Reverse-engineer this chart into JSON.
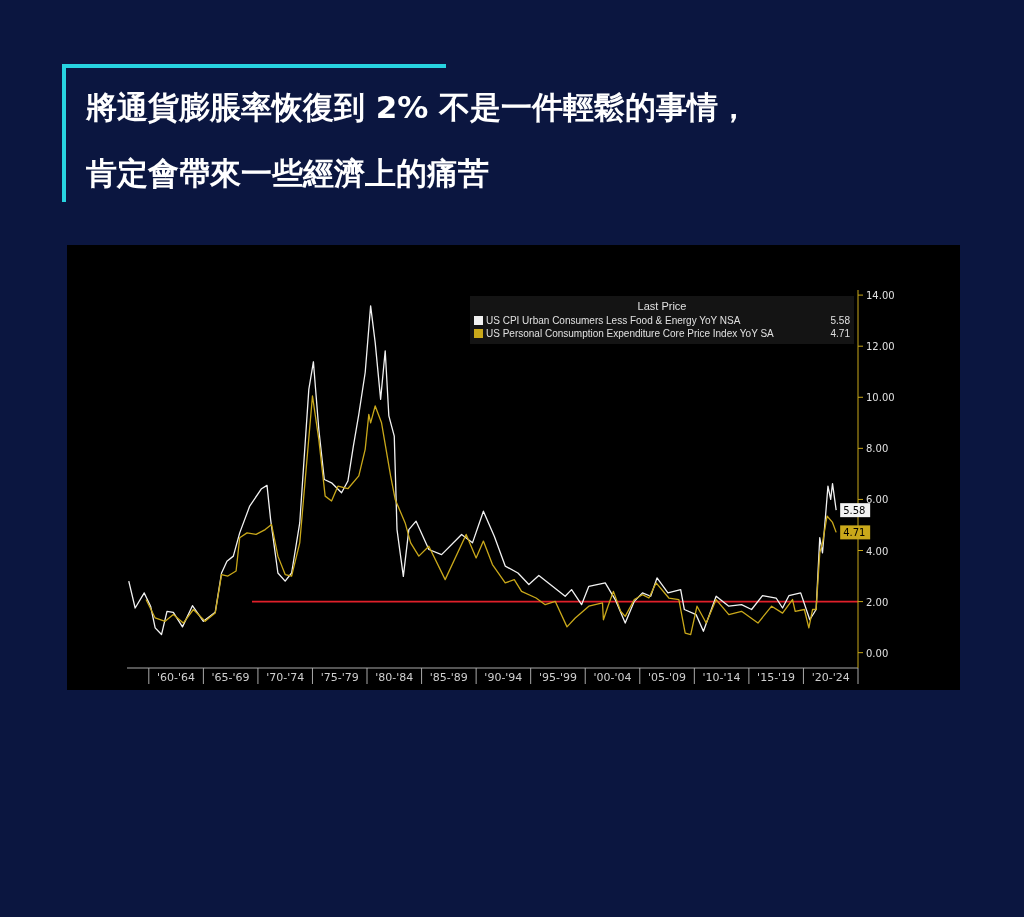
{
  "chart_data": {
    "type": "line",
    "title": "將通貨膨脹率恢復到 2% 不是一件輕鬆的事情，肯定會帶來一些經濟上的痛苦",
    "legend_title": "Last Price",
    "legend": "top right",
    "grid": false,
    "xlim": [
      "1958-01",
      "2025-01"
    ],
    "xticks": [
      {
        "value": "1960-01",
        "label": null
      },
      {
        "value": "1962-07",
        "label": "'60-'64"
      },
      {
        "value": "1965-01",
        "label": null
      },
      {
        "value": "1967-07",
        "label": "'65-'69"
      },
      {
        "value": "1970-01",
        "label": null
      },
      {
        "value": "1972-07",
        "label": "'70-'74"
      },
      {
        "value": "1975-01",
        "label": null
      },
      {
        "value": "1977-07",
        "label": "'75-'79"
      },
      {
        "value": "1980-01",
        "label": null
      },
      {
        "value": "1982-07",
        "label": "'80-'84"
      },
      {
        "value": "1985-01",
        "label": null
      },
      {
        "value": "1987-07",
        "label": "'85-'89"
      },
      {
        "value": "1990-01",
        "label": null
      },
      {
        "value": "1992-07",
        "label": "'90-'94"
      },
      {
        "value": "1995-01",
        "label": null
      },
      {
        "value": "1997-07",
        "label": "'95-'99"
      },
      {
        "value": "2000-01",
        "label": null
      },
      {
        "value": "2002-07",
        "label": "'00-'04"
      },
      {
        "value": "2005-01",
        "label": null
      },
      {
        "value": "2007-07",
        "label": "'05-'09"
      },
      {
        "value": "2010-01",
        "label": null
      },
      {
        "value": "2012-07",
        "label": "'10-'14"
      },
      {
        "value": "2015-01",
        "label": null
      },
      {
        "value": "2017-07",
        "label": "'15-'19"
      },
      {
        "value": "2020-01",
        "label": null
      },
      {
        "value": "2022-07",
        "label": "'20-'24"
      },
      {
        "value": "2025-01",
        "label": null
      }
    ],
    "ylim": [
      -0.6,
      14.2
    ],
    "yticks": [
      {
        "value": 0,
        "label": "0.00"
      },
      {
        "value": 2,
        "label": "2.00"
      },
      {
        "value": 4,
        "label": "4.00"
      },
      {
        "value": 6,
        "label": "6.00"
      },
      {
        "value": 8,
        "label": "8.00"
      },
      {
        "value": 10,
        "label": "10.00"
      },
      {
        "value": 12,
        "label": "12.00"
      },
      {
        "value": 14,
        "label": "14.00"
      }
    ],
    "ref_lines": [
      {
        "axis": "y",
        "value": 2,
        "color": "#e0202a"
      }
    ],
    "series": [
      {
        "name": "US CPI Urban Consumers Less Food & Energy YoY NSA",
        "color": "#f2f2f2",
        "x": [
          "1958-03",
          "1958-10",
          "1959-08",
          "1960-03",
          "1960-08",
          "1961-03",
          "1961-09",
          "1962-04",
          "1963-02",
          "1964-01",
          "1965-01",
          "1966-02",
          "1966-09",
          "1967-03",
          "1967-10",
          "1968-05",
          "1969-04",
          "1970-05",
          "1970-11",
          "1971-03",
          "1971-11",
          "1972-07",
          "1973-02",
          "1973-11",
          "1974-09",
          "1975-02",
          "1975-08",
          "1976-02",
          "1976-10",
          "1977-09",
          "1978-04",
          "1978-10",
          "1979-04",
          "1979-11",
          "1980-05",
          "1980-10",
          "1981-04",
          "1981-09",
          "1982-01",
          "1982-07",
          "1982-10",
          "1983-05",
          "1983-11",
          "1984-07",
          "1985-09",
          "1986-11",
          "1988-09",
          "1989-09",
          "1990-09",
          "1991-09",
          "1992-09",
          "1993-11",
          "1994-11",
          "1995-10",
          "1997-01",
          "1998-03",
          "1998-10",
          "1999-09",
          "2000-05",
          "2001-11",
          "2002-10",
          "2003-09",
          "2004-07",
          "2005-04",
          "2006-01",
          "2006-08",
          "2007-08",
          "2008-10",
          "2009-02",
          "2010-03",
          "2010-11",
          "2012-01",
          "2013-03",
          "2014-05",
          "2015-04",
          "2016-04",
          "2017-07",
          "2018-02",
          "2018-09",
          "2019-10",
          "2020-08",
          "2021-03",
          "2021-07",
          "2021-10",
          "2022-04",
          "2022-07",
          "2022-09",
          "2023-01"
        ],
        "values": [
          2.8,
          1.75,
          2.34,
          1.82,
          0.97,
          0.71,
          1.62,
          1.58,
          1.01,
          1.84,
          1.23,
          1.58,
          3.12,
          3.58,
          3.78,
          4.69,
          5.74,
          6.42,
          6.55,
          5.22,
          3.12,
          2.8,
          3.12,
          5.08,
          10.31,
          11.39,
          8.75,
          6.78,
          6.65,
          6.26,
          6.72,
          8.09,
          9.33,
          10.97,
          13.58,
          12.14,
          9.92,
          11.82,
          9.27,
          8.48,
          4.82,
          2.99,
          4.82,
          5.15,
          4.04,
          3.84,
          4.63,
          4.3,
          5.54,
          4.56,
          3.39,
          3.12,
          2.67,
          3.02,
          2.6,
          2.21,
          2.47,
          1.88,
          2.6,
          2.73,
          2.08,
          1.16,
          2.01,
          2.34,
          2.21,
          2.93,
          2.34,
          2.47,
          1.69,
          1.49,
          0.84,
          2.21,
          1.82,
          1.88,
          1.69,
          2.23,
          2.14,
          1.75,
          2.23,
          2.34,
          1.29,
          1.69,
          4.5,
          3.91,
          6.52,
          6.0,
          6.62,
          5.58
        ],
        "value_labels": [
          null,
          null,
          null,
          null,
          null,
          null,
          null,
          null,
          null,
          null,
          null,
          null,
          null,
          null,
          null,
          null,
          null,
          null,
          null,
          null,
          null,
          null,
          null,
          null,
          null,
          null,
          null,
          null,
          null,
          null,
          null,
          null,
          null,
          null,
          null,
          null,
          null,
          null,
          null,
          null,
          null,
          null,
          null,
          null,
          null,
          null,
          null,
          null,
          null,
          null,
          null,
          null,
          null,
          null,
          null,
          null,
          null,
          null,
          null,
          null,
          null,
          null,
          null,
          null,
          null,
          null,
          null,
          null,
          null,
          null,
          null,
          null,
          null,
          null,
          null,
          null,
          null,
          null,
          null,
          null,
          null,
          null,
          null,
          null,
          null,
          null,
          null,
          "5.58"
        ]
      },
      {
        "name": "US Personal Consumption Expenditure Core Price Index YoY SA",
        "color": "#c9a81a",
        "x": [
          "1959-10",
          "1960-08",
          "1961-07",
          "1962-04",
          "1963-03",
          "1964-02",
          "1965-03",
          "1966-02",
          "1966-09",
          "1967-04",
          "1968-01",
          "1968-05",
          "1969-01",
          "1969-11",
          "1970-09",
          "1971-04",
          "1971-11",
          "1972-07",
          "1973-02",
          "1973-11",
          "1975-01",
          "1975-08",
          "1976-03",
          "1976-10",
          "1977-05",
          "1978-04",
          "1979-04",
          "1979-11",
          "1980-03",
          "1980-05",
          "1980-10",
          "1981-05",
          "1982-03",
          "1982-08",
          "1983-07",
          "1984-01",
          "1984-10",
          "1985-09",
          "1987-03",
          "1989-02",
          "1990-01",
          "1990-09",
          "1991-07",
          "1992-09",
          "1993-07",
          "1994-03",
          "1995-07",
          "1996-05",
          "1997-04",
          "1998-05",
          "1999-02",
          "2000-05",
          "2001-08",
          "2001-09",
          "2002-02",
          "2002-08",
          "2003-04",
          "2003-09",
          "2004-07",
          "2005-04",
          "2005-11",
          "2006-07",
          "2007-09",
          "2008-08",
          "2009-03",
          "2009-09",
          "2010-04",
          "2011-02",
          "2012-01",
          "2013-03",
          "2014-05",
          "2015-11",
          "2017-02",
          "2018-02",
          "2019-01",
          "2019-04",
          "2020-02",
          "2020-07",
          "2020-11",
          "2021-03",
          "2021-07",
          "2021-10",
          "2022-03",
          "2022-09",
          "2023-01"
        ],
        "values": [
          2.08,
          1.36,
          1.23,
          1.49,
          1.16,
          1.69,
          1.23,
          1.55,
          3.06,
          3.0,
          3.2,
          4.5,
          4.69,
          4.63,
          4.82,
          5.02,
          3.78,
          3.06,
          3.0,
          4.3,
          10.05,
          8.35,
          6.13,
          5.94,
          6.52,
          6.42,
          6.92,
          7.96,
          9.33,
          9.0,
          9.66,
          9.0,
          6.92,
          6.0,
          5.08,
          4.3,
          3.78,
          4.17,
          2.86,
          4.63,
          3.71,
          4.37,
          3.45,
          2.73,
          2.86,
          2.4,
          2.14,
          1.88,
          2.01,
          1.01,
          1.36,
          1.82,
          1.95,
          1.29,
          1.82,
          2.4,
          1.62,
          1.42,
          2.08,
          2.27,
          2.14,
          2.73,
          2.14,
          2.08,
          0.77,
          0.71,
          1.82,
          1.16,
          2.08,
          1.49,
          1.62,
          1.16,
          1.82,
          1.55,
          2.08,
          1.62,
          1.69,
          0.97,
          1.69,
          1.69,
          3.91,
          4.3,
          5.35,
          5.1,
          4.71
        ],
        "value_labels": [
          null,
          null,
          null,
          null,
          null,
          null,
          null,
          null,
          null,
          null,
          null,
          null,
          null,
          null,
          null,
          null,
          null,
          null,
          null,
          null,
          null,
          null,
          null,
          null,
          null,
          null,
          null,
          null,
          null,
          null,
          null,
          null,
          null,
          null,
          null,
          null,
          null,
          null,
          null,
          null,
          null,
          null,
          null,
          null,
          null,
          null,
          null,
          null,
          null,
          null,
          null,
          null,
          null,
          null,
          null,
          null,
          null,
          null,
          null,
          null,
          null,
          null,
          null,
          null,
          null,
          null,
          null,
          null,
          null,
          null,
          null,
          null,
          null,
          null,
          null,
          null,
          null,
          null,
          null,
          null,
          null,
          null,
          null,
          null,
          "4.71"
        ]
      }
    ]
  }
}
